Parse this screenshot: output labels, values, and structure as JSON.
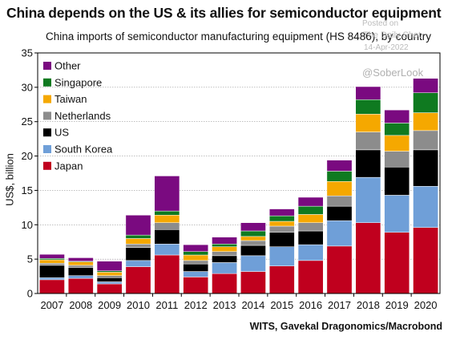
{
  "title": "China depends on the US & its allies for semiconductor equipment",
  "subtitle": "China imports of semiconductor manufacturing equipment (HS 8486), by country",
  "source": "WITS, Gavekal Dragonomics/Macrobond",
  "watermark": {
    "posted": "Posted on",
    "site": "The Daily Shot",
    "date": "14-Apr-2022",
    "handle": "@SoberLook"
  },
  "chart_data": {
    "type": "bar",
    "stacked": true,
    "ylabel": "US$, billion",
    "ylim": [
      0,
      35
    ],
    "yticks": [
      0,
      5,
      10,
      15,
      20,
      25,
      30,
      35
    ],
    "grid": true,
    "legend_position": "top-left",
    "categories": [
      "2007",
      "2008",
      "2009",
      "2010",
      "2011",
      "2012",
      "2013",
      "2014",
      "2015",
      "2016",
      "2017",
      "2018",
      "2019",
      "2020"
    ],
    "series": [
      {
        "name": "Japan",
        "color": "#c0001e",
        "values": [
          2.0,
          2.2,
          1.4,
          3.9,
          5.6,
          2.4,
          2.9,
          3.2,
          4.0,
          4.8,
          6.9,
          10.3,
          8.9,
          9.6
        ]
      },
      {
        "name": "South Korea",
        "color": "#6f9fd8",
        "values": [
          0.3,
          0.4,
          0.3,
          0.9,
          1.6,
          0.8,
          1.6,
          2.3,
          2.8,
          2.3,
          3.7,
          6.6,
          5.4,
          6.0
        ]
      },
      {
        "name": "US",
        "color": "#000000",
        "values": [
          1.8,
          1.2,
          0.6,
          1.9,
          2.1,
          1.1,
          1.0,
          1.5,
          2.1,
          2.0,
          2.1,
          4.0,
          4.1,
          5.3
        ]
      },
      {
        "name": "Netherlands",
        "color": "#8c8c8c",
        "values": [
          0.3,
          0.3,
          0.3,
          0.5,
          1.0,
          0.5,
          0.6,
          0.7,
          0.9,
          1.2,
          1.5,
          2.6,
          2.3,
          2.8
        ]
      },
      {
        "name": "Taiwan",
        "color": "#f5a800",
        "values": [
          0.5,
          0.5,
          0.5,
          0.8,
          1.1,
          0.8,
          0.7,
          0.6,
          0.7,
          1.2,
          2.1,
          2.6,
          2.3,
          2.6
        ]
      },
      {
        "name": "Singapore",
        "color": "#0f7a20",
        "values": [
          0.2,
          0.1,
          0.2,
          0.5,
          0.6,
          0.5,
          0.4,
          0.8,
          0.8,
          1.2,
          1.5,
          2.1,
          1.8,
          2.9
        ]
      },
      {
        "name": "Other",
        "color": "#7a0a80",
        "values": [
          0.6,
          0.5,
          1.4,
          2.9,
          5.1,
          1.0,
          1.0,
          1.2,
          1.0,
          1.3,
          1.6,
          1.9,
          1.9,
          2.1
        ]
      }
    ],
    "legend_order": [
      "Other",
      "Singapore",
      "Taiwan",
      "Netherlands",
      "US",
      "South Korea",
      "Japan"
    ]
  }
}
